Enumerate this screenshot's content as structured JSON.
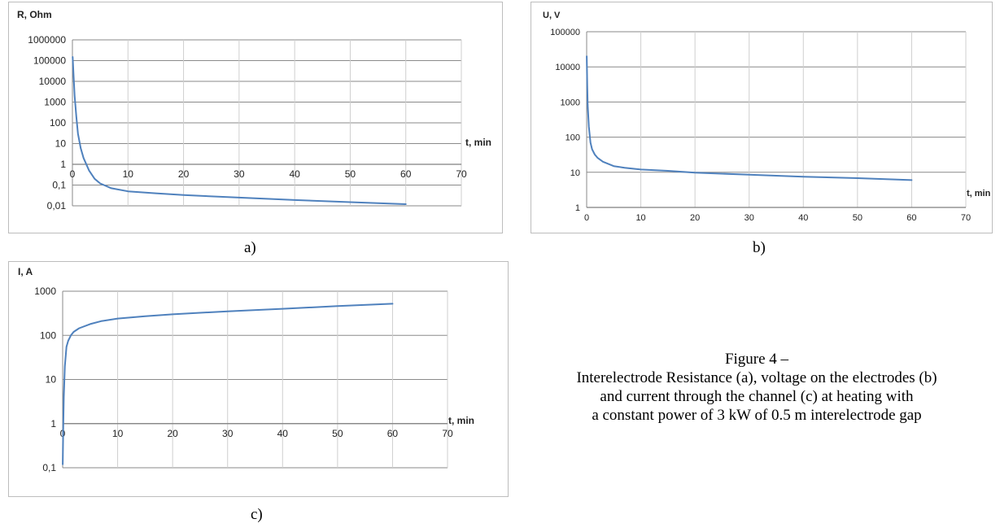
{
  "chart_data": [
    {
      "id": "a",
      "type": "line",
      "ylabel": "R, Ohm",
      "xlabel": "t, min",
      "y_scale": "log",
      "ylim": [
        0.01,
        1000000
      ],
      "xlim": [
        0,
        70
      ],
      "y_ticks": [
        {
          "value": 1000000,
          "label": "1000000"
        },
        {
          "value": 100000,
          "label": "100000"
        },
        {
          "value": 10000,
          "label": "10000"
        },
        {
          "value": 1000,
          "label": "1000"
        },
        {
          "value": 100,
          "label": "100"
        },
        {
          "value": 10,
          "label": "10"
        },
        {
          "value": 1,
          "label": "1"
        },
        {
          "value": 0.1,
          "label": "0,1"
        },
        {
          "value": 0.01,
          "label": "0,01"
        }
      ],
      "x_ticks": [
        {
          "value": 0,
          "label": "0"
        },
        {
          "value": 10,
          "label": "10"
        },
        {
          "value": 20,
          "label": "20"
        },
        {
          "value": 30,
          "label": "30"
        },
        {
          "value": 40,
          "label": "40"
        },
        {
          "value": 50,
          "label": "50"
        },
        {
          "value": 60,
          "label": "60"
        },
        {
          "value": 70,
          "label": "70"
        }
      ],
      "x_axis_at": 1,
      "grid": true,
      "line_color": "#4f81bd",
      "series": [
        {
          "x": [
            0.05,
            0.2,
            0.4,
            0.7,
            1,
            1.5,
            2,
            3,
            4,
            5,
            7,
            10,
            15,
            20,
            30,
            40,
            50,
            60
          ],
          "y": [
            150000,
            20000,
            2000,
            200,
            30,
            6,
            2,
            0.5,
            0.2,
            0.12,
            0.07,
            0.05,
            0.04,
            0.033,
            0.025,
            0.019,
            0.015,
            0.012
          ]
        }
      ]
    },
    {
      "id": "b",
      "type": "line",
      "ylabel": "U, V",
      "xlabel": "t, min",
      "y_scale": "log",
      "ylim": [
        1,
        100000
      ],
      "xlim": [
        0,
        70
      ],
      "y_ticks": [
        {
          "value": 100000,
          "label": "100000"
        },
        {
          "value": 10000,
          "label": "10000"
        },
        {
          "value": 1000,
          "label": "1000"
        },
        {
          "value": 100,
          "label": "100"
        },
        {
          "value": 10,
          "label": "10"
        },
        {
          "value": 1,
          "label": "1"
        }
      ],
      "x_ticks": [
        {
          "value": 0,
          "label": "0"
        },
        {
          "value": 10,
          "label": "10"
        },
        {
          "value": 20,
          "label": "20"
        },
        {
          "value": 30,
          "label": "30"
        },
        {
          "value": 40,
          "label": "40"
        },
        {
          "value": 50,
          "label": "50"
        },
        {
          "value": 60,
          "label": "60"
        },
        {
          "value": 70,
          "label": "70"
        }
      ],
      "x_axis_at": 1,
      "grid": true,
      "line_color": "#4f81bd",
      "series": [
        {
          "x": [
            0.02,
            0.1,
            0.2,
            0.4,
            0.7,
            1,
            1.5,
            2,
            3,
            5,
            7,
            10,
            15,
            20,
            30,
            40,
            50,
            60
          ],
          "y": [
            20000,
            3000,
            800,
            200,
            70,
            45,
            32,
            26,
            20,
            15,
            13.5,
            12,
            11,
            9.8,
            8.5,
            7.5,
            6.8,
            6
          ]
        }
      ]
    },
    {
      "id": "c",
      "type": "line",
      "ylabel": "I, A",
      "xlabel": "t, min",
      "y_scale": "log",
      "ylim": [
        0.1,
        1000
      ],
      "xlim": [
        0,
        70
      ],
      "y_ticks": [
        {
          "value": 1000,
          "label": "1000"
        },
        {
          "value": 100,
          "label": "100"
        },
        {
          "value": 10,
          "label": "10"
        },
        {
          "value": 1,
          "label": "1"
        },
        {
          "value": 0.1,
          "label": "0,1"
        }
      ],
      "x_ticks": [
        {
          "value": 0,
          "label": "0"
        },
        {
          "value": 10,
          "label": "10"
        },
        {
          "value": 20,
          "label": "20"
        },
        {
          "value": 30,
          "label": "30"
        },
        {
          "value": 40,
          "label": "40"
        },
        {
          "value": 50,
          "label": "50"
        },
        {
          "value": 60,
          "label": "60"
        },
        {
          "value": 70,
          "label": "70"
        }
      ],
      "x_axis_at": 1,
      "grid": true,
      "line_color": "#4f81bd",
      "series": [
        {
          "x": [
            0.02,
            0.1,
            0.2,
            0.4,
            0.7,
            1,
            1.5,
            2,
            3,
            5,
            7,
            10,
            15,
            20,
            30,
            40,
            50,
            60
          ],
          "y": [
            0.12,
            0.8,
            4,
            20,
            55,
            75,
            100,
            120,
            145,
            180,
            210,
            240,
            270,
            300,
            350,
            400,
            460,
            520
          ]
        }
      ]
    }
  ],
  "labels": {
    "a": "a)",
    "b": "b)",
    "c": "c)"
  },
  "caption": {
    "line1": "Figure 4 –",
    "line2": "Interelectrode Resistance (a), voltage on the electrodes (b)",
    "line3": "and current through the channel (c) at heating with",
    "line4": "a constant power of 3 kW of 0.5 m interelectrode gap"
  }
}
